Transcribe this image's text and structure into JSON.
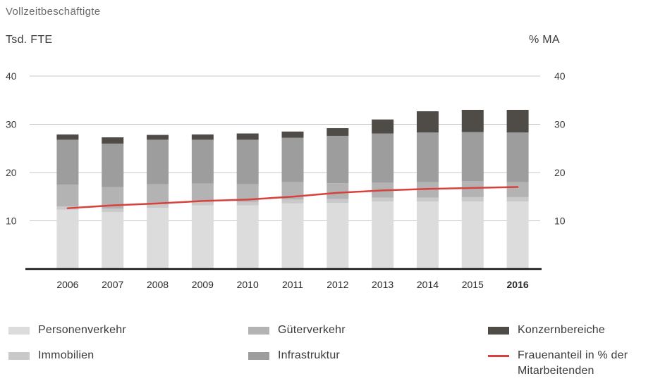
{
  "chart_data": {
    "type": "bar",
    "title": "Vollzeitbeschäftigte",
    "ylabel_left": "Tsd. FTE",
    "ylabel_right": "% MA",
    "ylim": [
      0,
      40
    ],
    "yticks_left": [
      10,
      20,
      30,
      40
    ],
    "yticks_right": [
      10,
      20,
      30,
      40
    ],
    "grid": true,
    "legend_position": "bottom",
    "categories": [
      "2006",
      "2007",
      "2008",
      "2009",
      "2010",
      "2011",
      "2012",
      "2013",
      "2014",
      "2015",
      "2016"
    ],
    "highlight_category": "2016",
    "stacked": true,
    "series": [
      {
        "name": "Personenverkehr",
        "color": "#dcdcdc",
        "values": [
          12.3,
          11.8,
          12.7,
          13.2,
          13.2,
          13.6,
          13.7,
          14.0,
          14.0,
          14.0,
          14.0
        ]
      },
      {
        "name": "Immobilien",
        "color": "#c9c9c9",
        "values": [
          0.7,
          0.7,
          0.7,
          0.7,
          0.7,
          0.8,
          0.8,
          0.8,
          0.8,
          0.9,
          0.9
        ]
      },
      {
        "name": "Güterverkehr",
        "color": "#b3b3b3",
        "values": [
          4.5,
          4.5,
          4.2,
          3.8,
          3.7,
          3.6,
          3.3,
          3.1,
          3.2,
          3.3,
          3.1
        ]
      },
      {
        "name": "Infrastruktur",
        "color": "#9d9d9d",
        "values": [
          9.3,
          9.0,
          9.2,
          9.1,
          9.2,
          9.2,
          9.8,
          10.2,
          10.3,
          10.2,
          10.3
        ]
      },
      {
        "name": "Konzernbereiche",
        "color": "#4f4b47",
        "values": [
          1.1,
          1.3,
          1.0,
          1.1,
          1.3,
          1.3,
          1.6,
          2.9,
          4.4,
          4.6,
          4.7
        ]
      }
    ],
    "line_series": {
      "name": "Frauenanteil in % der Mitarbeitenden",
      "color": "#d8413c",
      "axis": "right",
      "values": [
        12.6,
        13.2,
        13.6,
        14.1,
        14.4,
        15.0,
        15.8,
        16.3,
        16.6,
        16.8,
        17.0
      ]
    }
  },
  "legend": [
    {
      "label": "Personenverkehr",
      "color": "#dcdcdc",
      "kind": "box"
    },
    {
      "label": "Güterverkehr",
      "color": "#b3b3b3",
      "kind": "box"
    },
    {
      "label": "Konzernbereiche",
      "color": "#4f4b47",
      "kind": "box"
    },
    {
      "label": "Immobilien",
      "color": "#c9c9c9",
      "kind": "box"
    },
    {
      "label": "Infrastruktur",
      "color": "#9d9d9d",
      "kind": "box"
    },
    {
      "label": "Frauenanteil in % der Mitarbeitenden",
      "color": "#d8413c",
      "kind": "line"
    }
  ]
}
